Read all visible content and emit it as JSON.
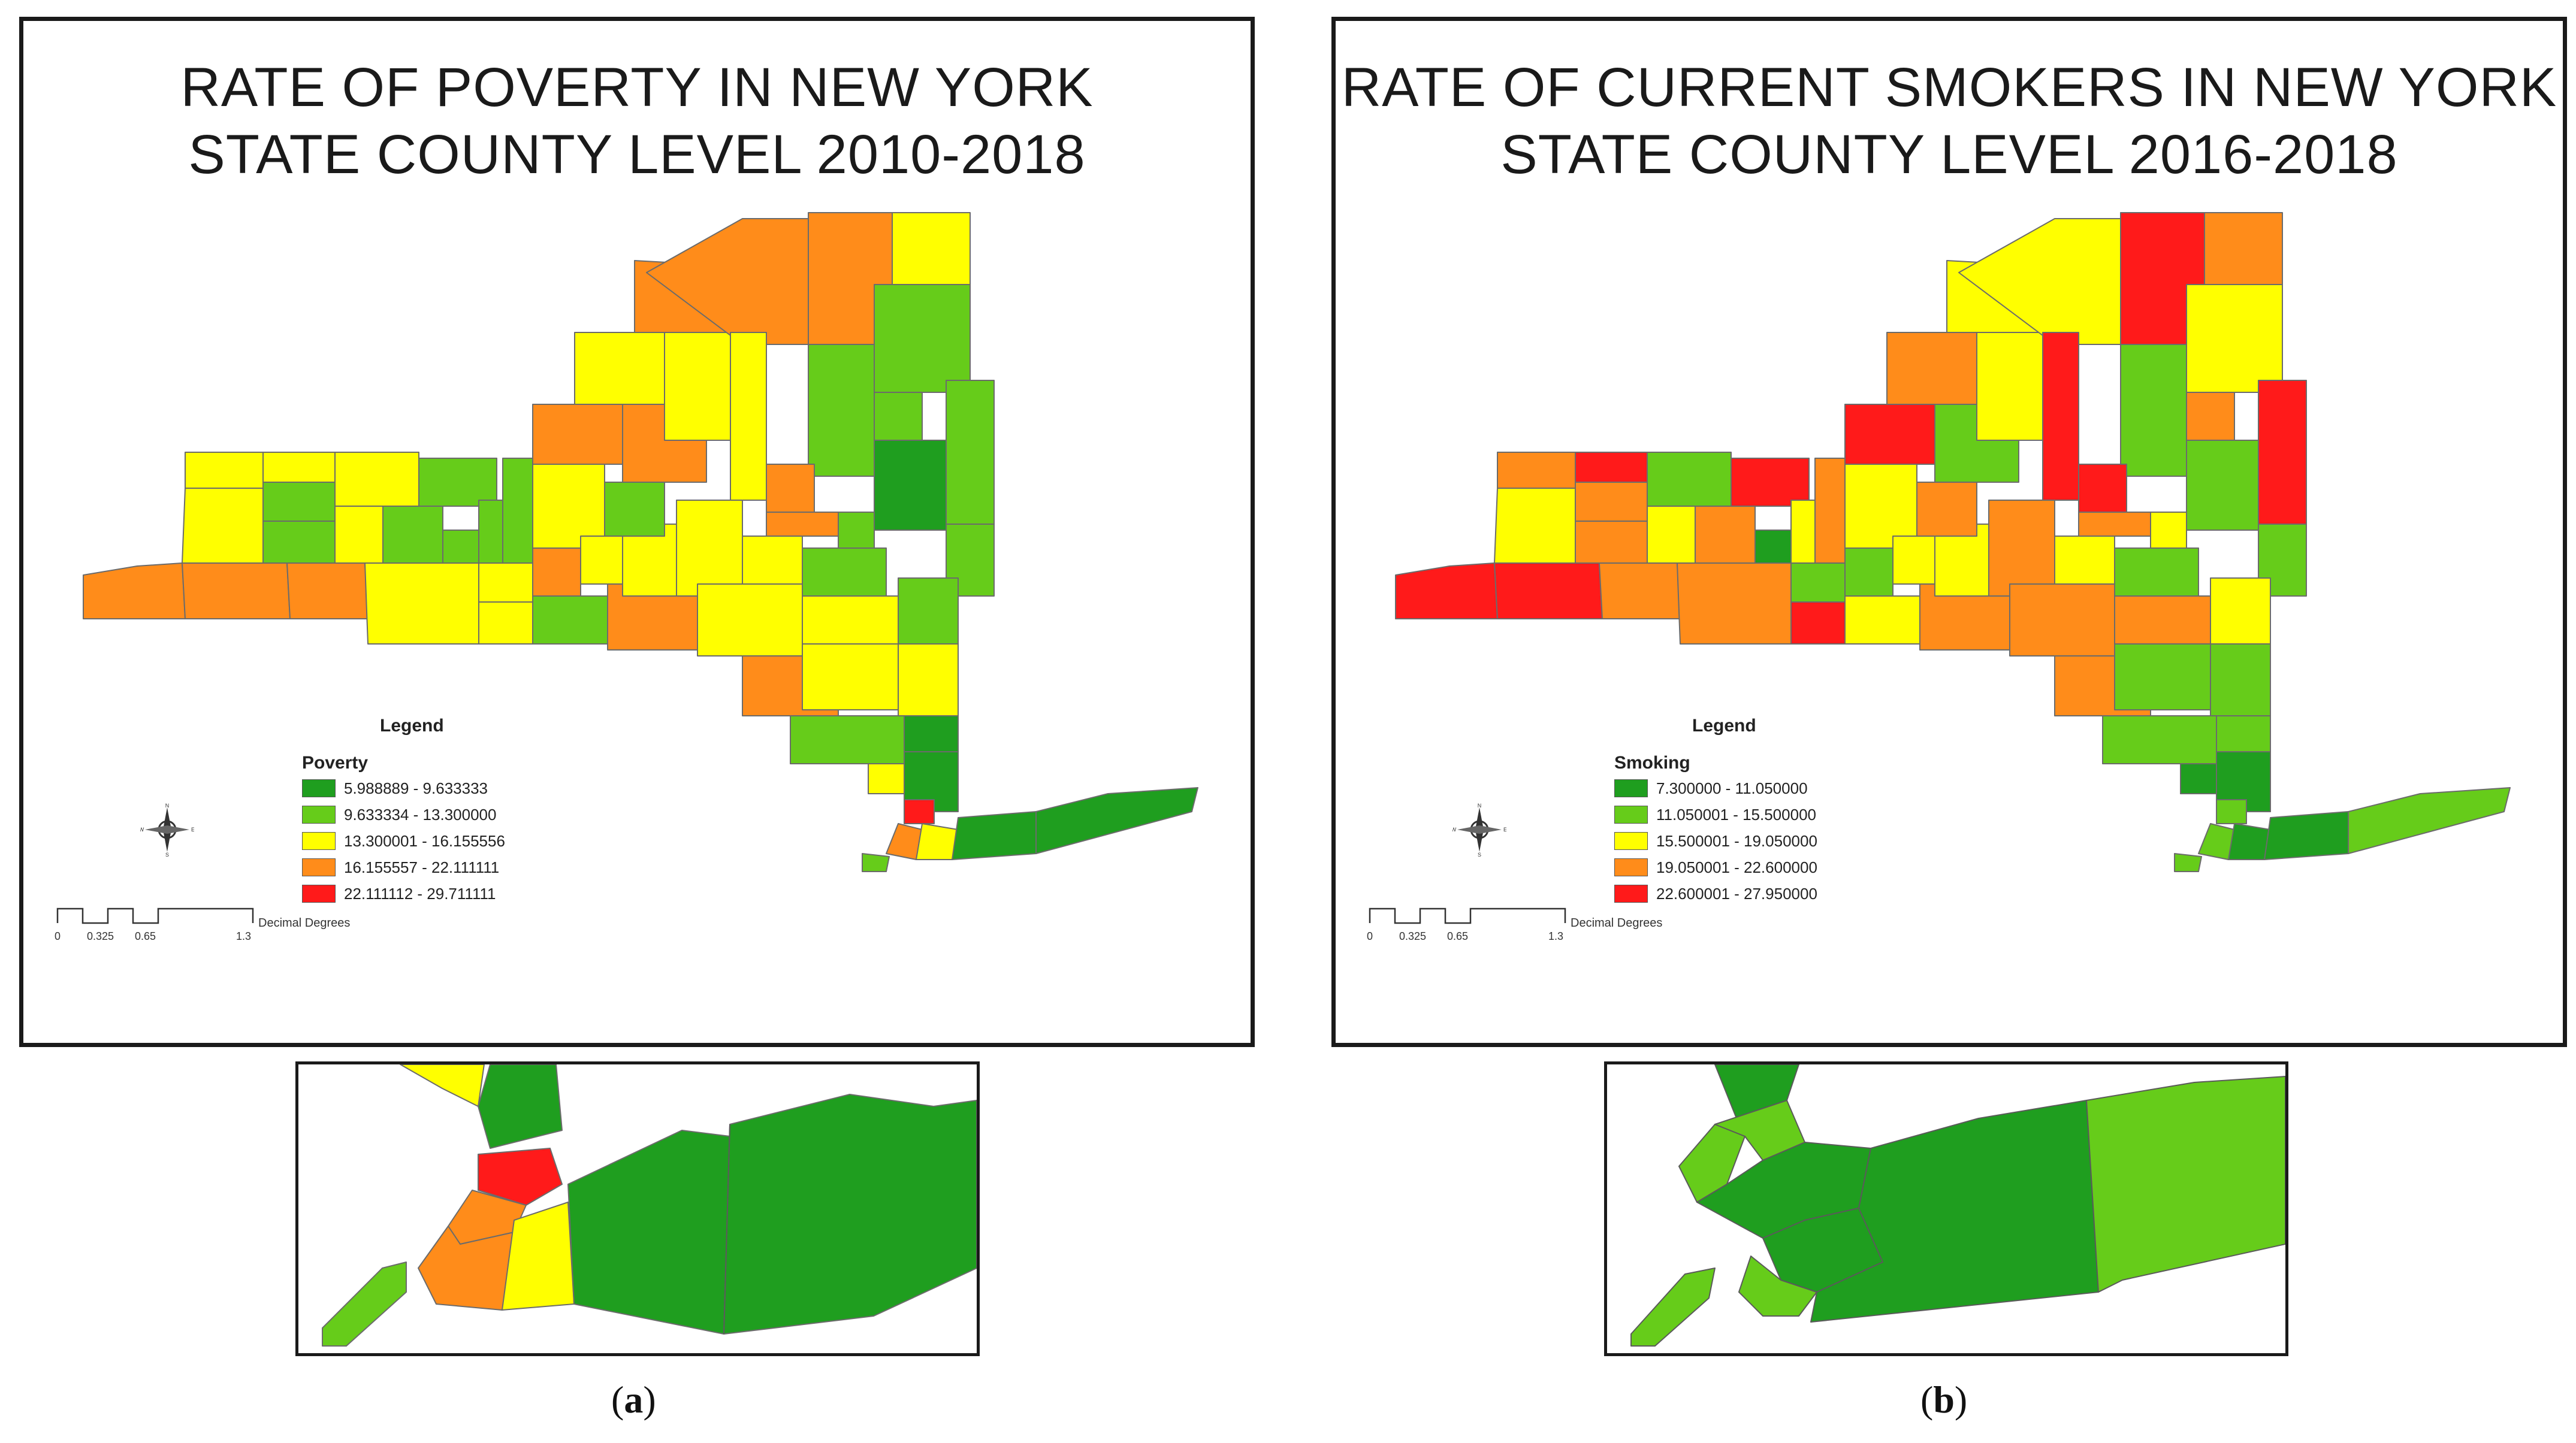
{
  "panels": [
    {
      "title": "RATE OF POVERTY IN  NEW YORK\nSTATE COUNTY LEVEL 2010-2018",
      "legend_title": "Legend",
      "variable": "Poverty",
      "classes": [
        {
          "label": "5.988889 - 9.633333",
          "color": "#1f9e1f"
        },
        {
          "label": "9.633334 - 13.300000",
          "color": "#66cc1a"
        },
        {
          "label": "13.300001 - 16.155556",
          "color": "#ffff00"
        },
        {
          "label": "16.155557 - 22.111111",
          "color": "#ff8c1a"
        },
        {
          "label": "22.111112 - 29.711111",
          "color": "#ff1a1a"
        }
      ],
      "scale_ticks": [
        "0",
        "0.325",
        "0.65",
        "1.3"
      ],
      "scale_unit": "Decimal Degrees",
      "caption_letter": "a"
    },
    {
      "title": "RATE OF CURRENT SMOKERS IN  NEW YORK\nSTATE COUNTY LEVEL 2016-2018",
      "legend_title": "Legend",
      "variable": "Smoking",
      "classes": [
        {
          "label": "7.300000 - 11.050000",
          "color": "#1f9e1f"
        },
        {
          "label": "11.050001 - 15.500000",
          "color": "#66cc1a"
        },
        {
          "label": "15.500001 - 19.050000",
          "color": "#ffff00"
        },
        {
          "label": "19.050001 - 22.600000",
          "color": "#ff8c1a"
        },
        {
          "label": "22.600001 - 27.950000",
          "color": "#ff1a1a"
        }
      ],
      "scale_ticks": [
        "0",
        "0.325",
        "0.65",
        "1.3"
      ],
      "scale_unit": "Decimal Degrees",
      "caption_letter": "b"
    }
  ],
  "compass_letters": {
    "n": "N",
    "s": "S",
    "e": "E",
    "w": "W"
  }
}
